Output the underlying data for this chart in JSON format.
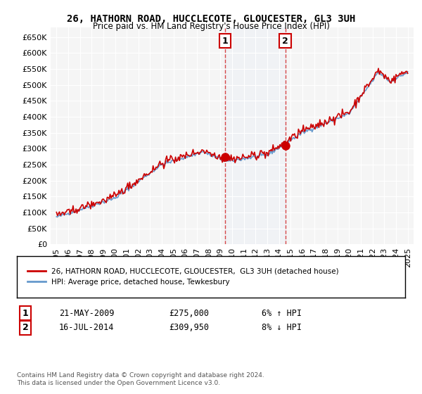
{
  "title": "26, HATHORN ROAD, HUCCLECOTE, GLOUCESTER, GL3 3UH",
  "subtitle": "Price paid vs. HM Land Registry's House Price Index (HPI)",
  "legend_line1": "26, HATHORN ROAD, HUCCLECOTE, GLOUCESTER,  GL3 3UH (detached house)",
  "legend_line2": "HPI: Average price, detached house, Tewkesbury",
  "transaction1_label": "1",
  "transaction1_date": "21-MAY-2009",
  "transaction1_price": "£275,000",
  "transaction1_hpi": "6% ↑ HPI",
  "transaction2_label": "2",
  "transaction2_date": "16-JUL-2014",
  "transaction2_price": "£309,950",
  "transaction2_hpi": "8% ↓ HPI",
  "footer": "Contains HM Land Registry data © Crown copyright and database right 2024.\nThis data is licensed under the Open Government Licence v3.0.",
  "line_color_red": "#cc0000",
  "line_color_blue": "#6699cc",
  "shaded_color": "#d0e4f7",
  "marker_color": "#cc0000",
  "transaction1_x": 2009.38,
  "transaction2_x": 2014.54,
  "transaction1_y": 275000,
  "transaction2_y": 309950,
  "ylim": [
    0,
    680000
  ],
  "xlim_start": 1995,
  "xlim_end": 2025.5,
  "background_color": "#ffffff",
  "plot_bg_color": "#f5f5f5"
}
